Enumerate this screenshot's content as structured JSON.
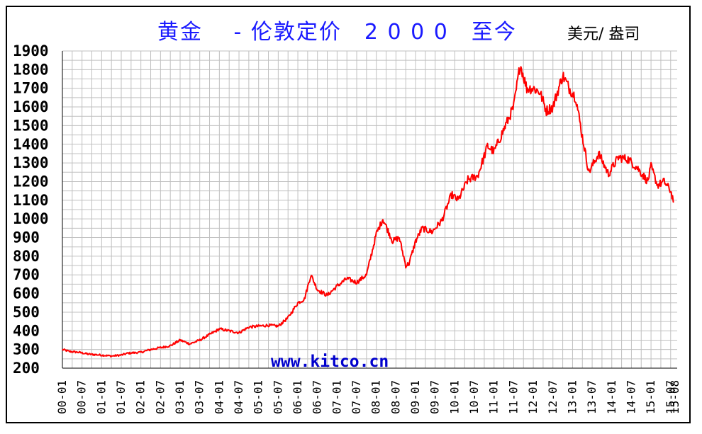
{
  "chart_data": {
    "type": "line",
    "title": "黄金　 - 伦敦定价　2 0 0 0　至今",
    "unit_label": "美元/ 盎司",
    "watermark": "www.kitco.cn",
    "ylim": [
      200,
      1900
    ],
    "y_ticks": [
      1900,
      1800,
      1700,
      1600,
      1500,
      1400,
      1300,
      1200,
      1100,
      1000,
      900,
      800,
      700,
      600,
      500,
      400,
      300,
      200
    ],
    "x_ticks": [
      "00-01",
      "00-07",
      "01-01",
      "01-07",
      "02-01",
      "02-07",
      "03-01",
      "03-07",
      "04-01",
      "04-07",
      "05-01",
      "05-07",
      "06-01",
      "06-07",
      "07-01",
      "07-07",
      "08-01",
      "08-07",
      "09-01",
      "09-07",
      "10-01",
      "10-07",
      "11-01",
      "11-07",
      "12-01",
      "12-07",
      "13-01",
      "13-07",
      "14-01",
      "14-07",
      "15-01",
      "15-07"
    ],
    "last_tick": "15-08",
    "grid": true,
    "line_color": "#ff0000",
    "series": [
      {
        "x": [
          "2000-01",
          "2000-03",
          "2000-06",
          "2000-09",
          "2001-01",
          "2001-04",
          "2001-07",
          "2001-09",
          "2002-01",
          "2002-04",
          "2002-07",
          "2002-10",
          "2003-01",
          "2003-04",
          "2003-07",
          "2003-10",
          "2004-01",
          "2004-04",
          "2004-07",
          "2004-10",
          "2005-01",
          "2005-04",
          "2005-07",
          "2005-10",
          "2006-01",
          "2006-03",
          "2006-05",
          "2006-07",
          "2006-10",
          "2007-01",
          "2007-04",
          "2007-07",
          "2007-10",
          "2008-01",
          "2008-03",
          "2008-06",
          "2008-08",
          "2008-10",
          "2008-11",
          "2009-01",
          "2009-03",
          "2009-06",
          "2009-09",
          "2009-12",
          "2010-02",
          "2010-05",
          "2010-08",
          "2010-11",
          "2011-01",
          "2011-04",
          "2011-07",
          "2011-09",
          "2011-11",
          "2012-01",
          "2012-03",
          "2012-05",
          "2012-07",
          "2012-10",
          "2012-12",
          "2013-02",
          "2013-04",
          "2013-06",
          "2013-09",
          "2013-12",
          "2014-03",
          "2014-06",
          "2014-09",
          "2014-12",
          "2015-01",
          "2015-03",
          "2015-05",
          "2015-07",
          "2015-08"
        ],
        "y": [
          300,
          290,
          285,
          275,
          270,
          265,
          270,
          280,
          285,
          300,
          310,
          320,
          350,
          330,
          350,
          380,
          410,
          400,
          390,
          420,
          425,
          430,
          425,
          470,
          550,
          570,
          700,
          620,
          590,
          640,
          680,
          660,
          700,
          920,
          1000,
          880,
          900,
          750,
          760,
          880,
          950,
          930,
          990,
          1130,
          1100,
          1210,
          1230,
          1390,
          1360,
          1480,
          1600,
          1830,
          1700,
          1700,
          1680,
          1580,
          1600,
          1770,
          1700,
          1650,
          1440,
          1250,
          1350,
          1240,
          1330,
          1320,
          1270,
          1200,
          1280,
          1180,
          1200,
          1150,
          1090
        ]
      }
    ]
  }
}
